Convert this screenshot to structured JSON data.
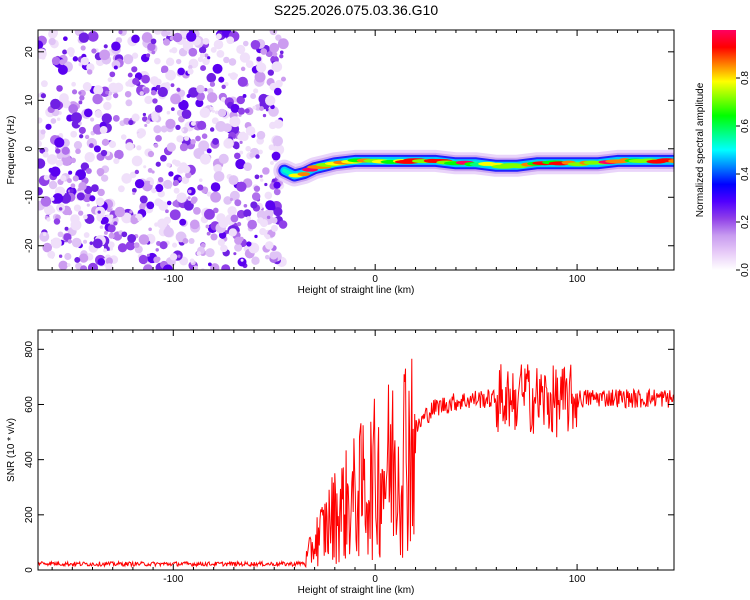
{
  "title": "S225.2026.075.03.36.G10",
  "chart_data": [
    {
      "type": "heatmap",
      "title": "S225.2026.075.03.36.G10",
      "xlabel": "Height of straight line (km)",
      "ylabel": "Frequency (Hz)",
      "xlim": [
        -167,
        148
      ],
      "ylim": [
        -25,
        24.5
      ],
      "xticks": [
        -100,
        0,
        100
      ],
      "xtick_labels": [
        "-100",
        "0",
        "100"
      ],
      "yticks": [
        20,
        10,
        0,
        -10,
        -20
      ],
      "ytick_labels": [
        "20",
        "10",
        "0",
        "-10",
        "-20"
      ],
      "noise_region_x": [
        -167,
        -45
      ],
      "signal_track": {
        "x": [
          -45,
          -40,
          -35,
          -30,
          -25,
          -20,
          -10,
          0,
          10,
          20,
          30,
          40,
          50,
          60,
          70,
          80,
          90,
          100,
          110,
          120,
          130,
          140,
          148
        ],
        "frequency_hz": [
          -4.5,
          -5.5,
          -5,
          -4,
          -3.5,
          -3,
          -2.5,
          -2.5,
          -2.5,
          -2.5,
          -2.5,
          -3,
          -3,
          -3.5,
          -3.5,
          -3,
          -3,
          -3,
          -3,
          -2.5,
          -2.5,
          -2.5,
          -2.5
        ]
      },
      "colorbar": {
        "label": "Normalized spectral amplitude",
        "range": [
          0,
          1
        ],
        "ticks": [
          0.0,
          0.2,
          0.4,
          0.6,
          0.8
        ],
        "tick_labels": [
          "0.0",
          "0.2",
          "0.4",
          "0.6",
          "0.8"
        ],
        "colors": [
          "#ffffff",
          "#e8ccf8",
          "#c89cf0",
          "#9040e8",
          "#5000ff",
          "#0000ff",
          "#0080ff",
          "#00ffff",
          "#00ff80",
          "#00ff00",
          "#80ff00",
          "#ffff00",
          "#ff8000",
          "#ff0000",
          "#ff0060"
        ]
      }
    },
    {
      "type": "line",
      "xlabel": "Height of straight line (km)",
      "ylabel": "SNR (10 * v/v)",
      "xlim": [
        -167,
        148
      ],
      "ylim": [
        0,
        870
      ],
      "xticks": [
        -100,
        0,
        100
      ],
      "xtick_labels": [
        "-100",
        "0",
        "100"
      ],
      "yticks": [
        0,
        200,
        400,
        600,
        800
      ],
      "ytick_labels": [
        "0",
        "200",
        "400",
        "600",
        "800"
      ],
      "series": [
        {
          "name": "SNR",
          "color": "#ff0000",
          "x": [
            -167,
            -150,
            -130,
            -110,
            -90,
            -70,
            -50,
            -40,
            -35,
            -30,
            -25,
            -20,
            -15,
            -10,
            -5,
            0,
            5,
            10,
            15,
            20,
            25,
            30,
            40,
            50,
            60,
            70,
            80,
            90,
            100,
            110,
            120,
            130,
            140,
            148
          ],
          "values": [
            25,
            22,
            22,
            22,
            22,
            22,
            22,
            22,
            25,
            100,
            150,
            200,
            230,
            260,
            300,
            330,
            360,
            400,
            450,
            510,
            560,
            590,
            610,
            620,
            620,
            630,
            620,
            610,
            620,
            625,
            625,
            620,
            625,
            620
          ]
        }
      ]
    }
  ]
}
